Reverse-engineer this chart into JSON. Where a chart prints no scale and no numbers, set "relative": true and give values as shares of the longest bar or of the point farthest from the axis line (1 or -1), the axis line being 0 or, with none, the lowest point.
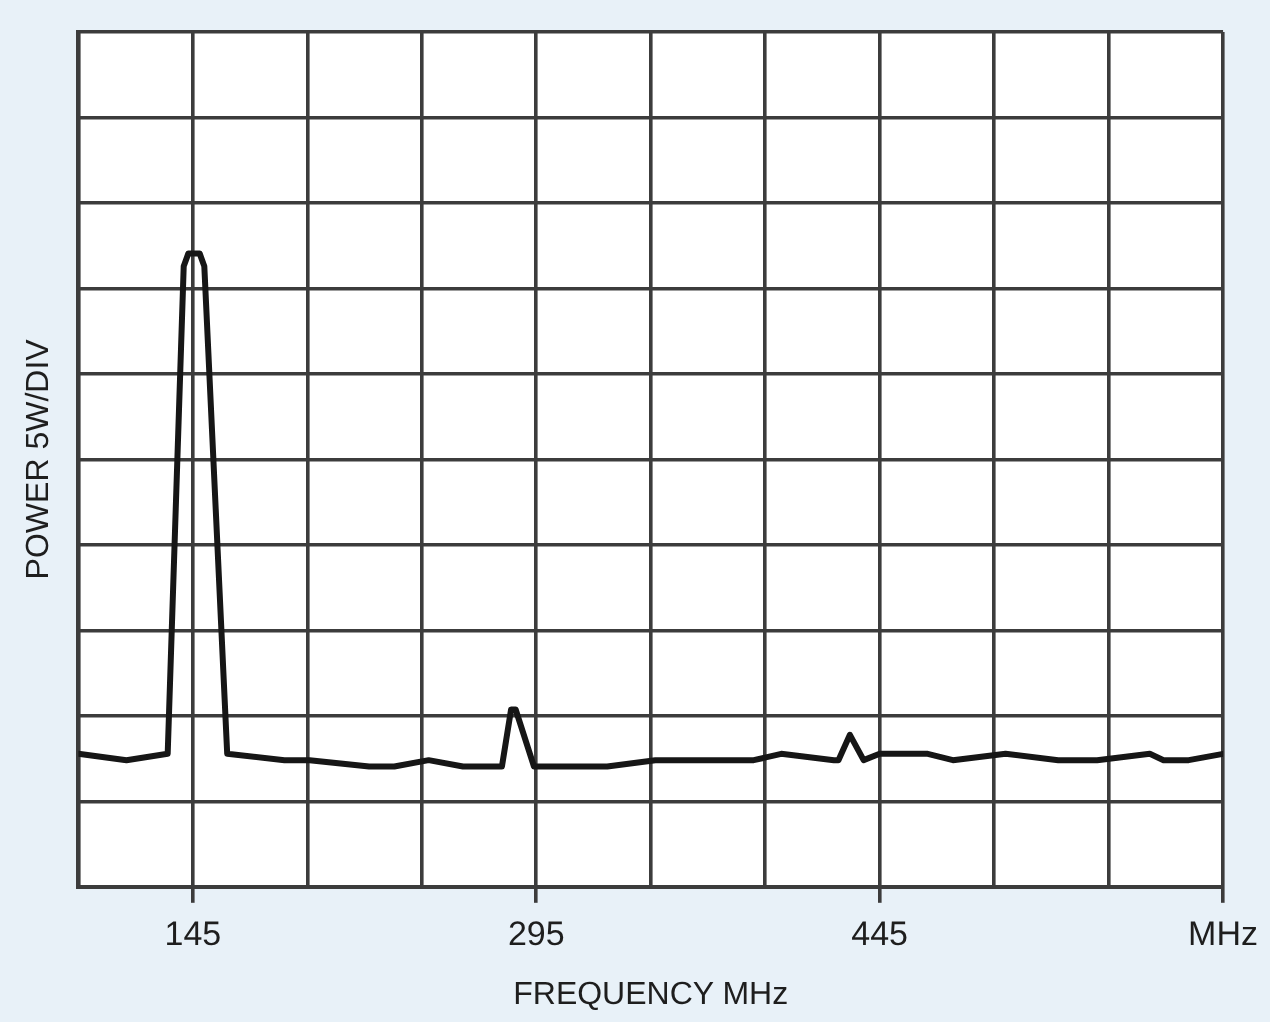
{
  "chart_data": {
    "type": "line",
    "xlabel": "FREQUENCY MHz",
    "ylabel": "POWER 5W/DIV",
    "relative": true,
    "color": "#161616",
    "x": [
      95,
      116,
      134,
      141,
      143,
      148,
      150,
      160,
      185,
      196,
      222,
      233,
      248,
      263,
      276,
      280,
      284,
      286,
      294,
      308,
      326,
      347,
      379,
      390,
      402,
      425,
      427,
      432,
      438,
      445,
      466,
      477,
      500,
      523,
      540,
      563,
      569,
      580,
      595
    ],
    "values": [
      0.21,
      0.2,
      0.21,
      0.98,
      1.0,
      1.0,
      0.98,
      0.21,
      0.2,
      0.2,
      0.19,
      0.19,
      0.2,
      0.19,
      0.19,
      0.19,
      0.28,
      0.28,
      0.19,
      0.19,
      0.19,
      0.2,
      0.2,
      0.2,
      0.21,
      0.2,
      0.2,
      0.24,
      0.2,
      0.21,
      0.21,
      0.2,
      0.21,
      0.2,
      0.2,
      0.21,
      0.2,
      0.2,
      0.21
    ],
    "xlim": [
      95,
      595
    ],
    "xticks": [
      {
        "value": 95,
        "label": null
      },
      145,
      {
        "value": 195,
        "label": null
      },
      {
        "value": 245,
        "label": null
      },
      295,
      {
        "value": 345,
        "label": null
      },
      {
        "value": 395,
        "label": null
      },
      445,
      {
        "value": 495,
        "label": null
      },
      {
        "value": 545,
        "label": null
      },
      {
        "value": 595,
        "label": "MHz"
      }
    ],
    "grid": true,
    "tick_labels": "x"
  }
}
